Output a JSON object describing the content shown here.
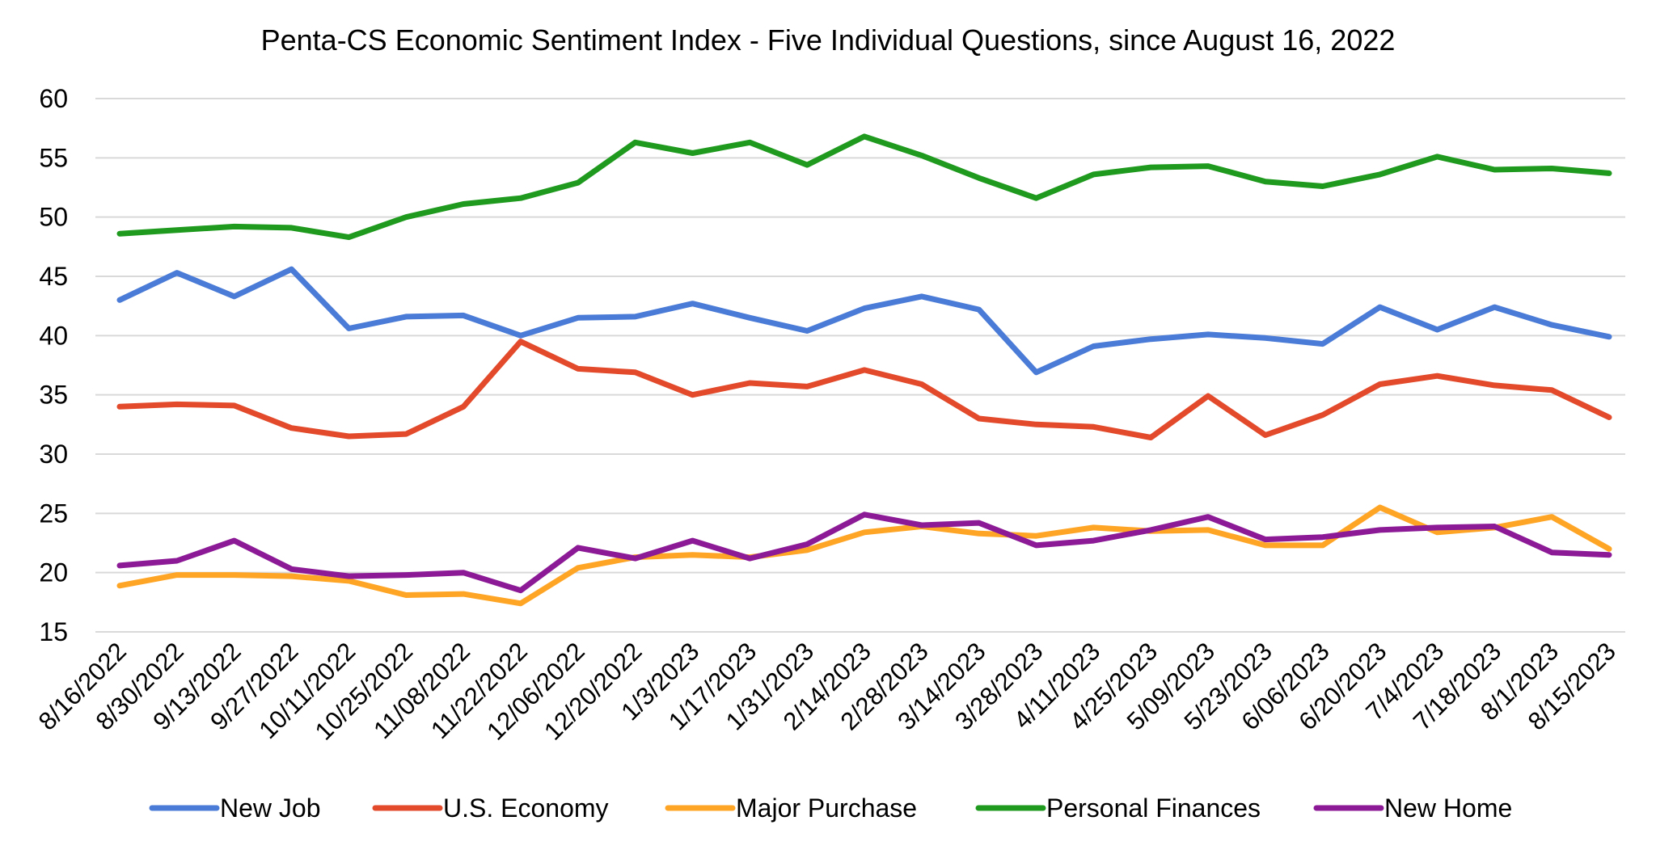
{
  "chart_data": {
    "type": "line",
    "title": "Penta-CS Economic Sentiment Index - Five Individual Questions, since August 16, 2022",
    "xlabel": "",
    "ylabel": "",
    "ylim": [
      15,
      60
    ],
    "yticks": [
      "15",
      "20",
      "25",
      "30",
      "35",
      "40",
      "45",
      "50",
      "55",
      "60"
    ],
    "grid": true,
    "legend_position": "bottom",
    "categories": [
      "8/16/2022",
      "8/30/2022",
      "9/13/2022",
      "9/27/2022",
      "10/11/2022",
      "10/25/2022",
      "11/08/2022",
      "11/22/2022",
      "12/06/2022",
      "12/20/2022",
      "1/3/2023",
      "1/17/2023",
      "1/31/2023",
      "2/14/2023",
      "2/28/2023",
      "3/14/2023",
      "3/28/2023",
      "4/11/2023",
      "4/25/2023",
      "5/09/2023",
      "5/23/2023",
      "6/06/2023",
      "6/20/2023",
      "7/4/2023",
      "7/18/2023",
      "8/1/2023",
      "8/15/2023"
    ],
    "series": [
      {
        "name": "New Job",
        "color": "#4a7bd6",
        "values": [
          43.0,
          45.3,
          43.3,
          45.6,
          40.6,
          41.6,
          41.7,
          40.0,
          41.5,
          41.6,
          42.7,
          41.5,
          40.4,
          42.3,
          43.3,
          42.2,
          36.9,
          39.1,
          39.7,
          40.1,
          39.8,
          39.3,
          42.4,
          40.5,
          42.4,
          40.9,
          39.9
        ]
      },
      {
        "name": "U.S. Economy",
        "color": "#e24a2b",
        "values": [
          34.0,
          34.2,
          34.1,
          32.2,
          31.5,
          31.7,
          34.0,
          39.5,
          37.2,
          36.9,
          35.0,
          36.0,
          35.7,
          37.1,
          35.9,
          33.0,
          32.5,
          32.3,
          31.4,
          34.9,
          31.6,
          33.3,
          35.9,
          36.6,
          35.8,
          35.4,
          33.1
        ]
      },
      {
        "name": "Major Purchase",
        "color": "#ffa526",
        "values": [
          18.9,
          19.8,
          19.8,
          19.7,
          19.3,
          18.1,
          18.2,
          17.4,
          20.4,
          21.3,
          21.5,
          21.3,
          21.9,
          23.4,
          23.9,
          23.3,
          23.1,
          23.8,
          23.5,
          23.6,
          22.3,
          22.3,
          25.5,
          23.4,
          23.8,
          24.7,
          22.0
        ]
      },
      {
        "name": "Personal Finances",
        "color": "#1f9a1f",
        "values": [
          48.6,
          48.9,
          49.2,
          49.1,
          48.3,
          50.0,
          51.1,
          51.6,
          52.9,
          56.3,
          55.4,
          56.3,
          54.4,
          56.8,
          55.2,
          53.3,
          51.6,
          53.6,
          54.2,
          54.3,
          53.0,
          52.6,
          53.6,
          55.1,
          54.0,
          54.1,
          53.7
        ]
      },
      {
        "name": "New Home",
        "color": "#8c1a96",
        "values": [
          20.6,
          21.0,
          22.7,
          20.3,
          19.7,
          19.8,
          20.0,
          18.5,
          22.1,
          21.2,
          22.7,
          21.2,
          22.4,
          24.9,
          24.0,
          24.2,
          22.3,
          22.7,
          23.6,
          24.7,
          22.8,
          23.0,
          23.6,
          23.8,
          23.9,
          21.7,
          21.5
        ]
      }
    ]
  }
}
